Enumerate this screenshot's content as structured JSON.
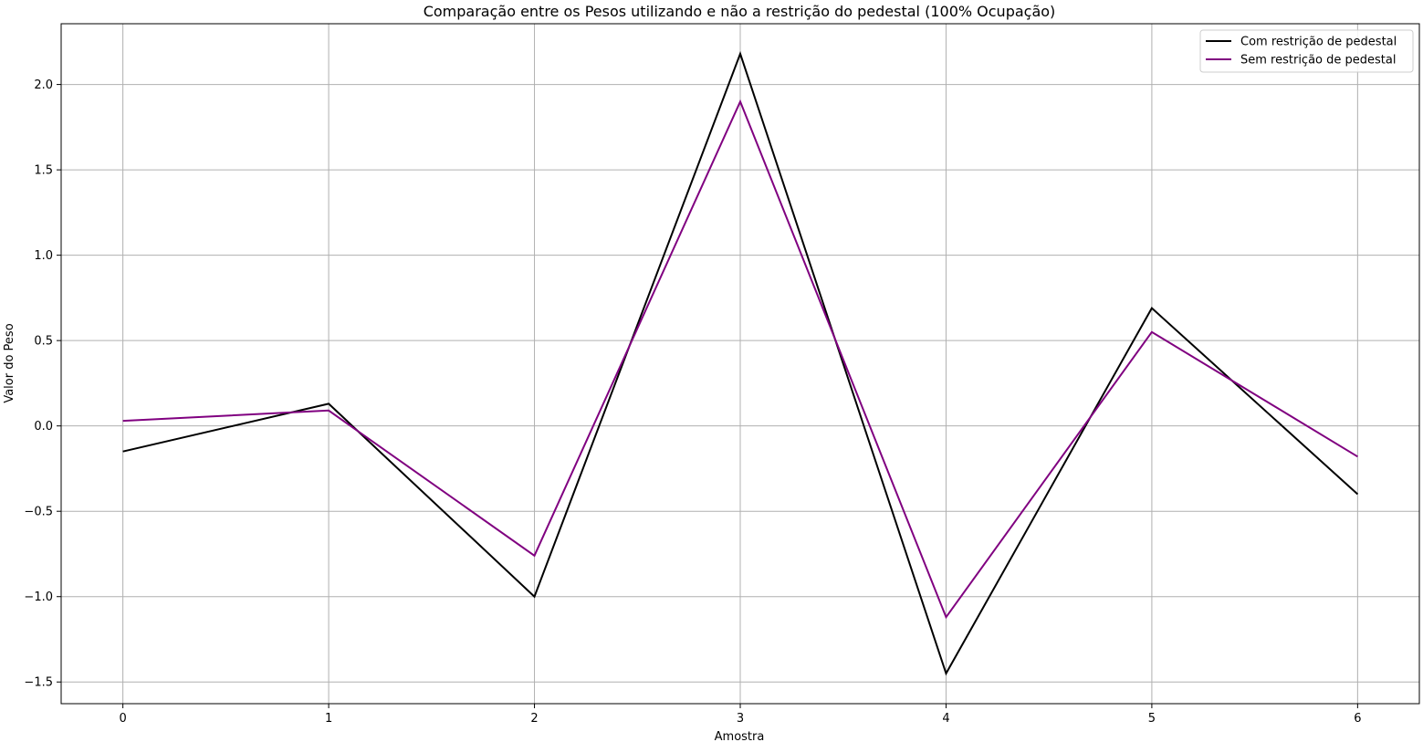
{
  "chart_data": {
    "type": "line",
    "title": "Comparação entre os Pesos utilizando e não a restrição do pedestal (100% Ocupação)",
    "xlabel": "Amostra",
    "ylabel": "Valor do Peso",
    "x": [
      0,
      1,
      2,
      3,
      4,
      5,
      6
    ],
    "xticks": [
      "0",
      "1",
      "2",
      "3",
      "4",
      "5",
      "6"
    ],
    "yticks": [
      -1.5,
      -1.0,
      -0.5,
      0.0,
      0.5,
      1.0,
      1.5,
      2.0
    ],
    "ytick_labels": [
      "−1.5",
      "−1.0",
      "−0.5",
      "0.0",
      "0.5",
      "1.0",
      "1.5",
      "2.0"
    ],
    "xlim": [
      -0.3,
      6.3
    ],
    "ylim": [
      -1.627,
      2.356
    ],
    "grid": true,
    "legend_position": "top-right",
    "series": [
      {
        "name": "Com restrição de pedestal",
        "color": "#000000",
        "values": [
          -0.15,
          0.13,
          -1.0,
          2.18,
          -1.45,
          0.69,
          -0.4
        ]
      },
      {
        "name": "Sem restrição de pedestal",
        "color": "#800080",
        "values": [
          0.03,
          0.09,
          -0.76,
          1.9,
          -1.12,
          0.55,
          -0.18
        ]
      }
    ]
  }
}
